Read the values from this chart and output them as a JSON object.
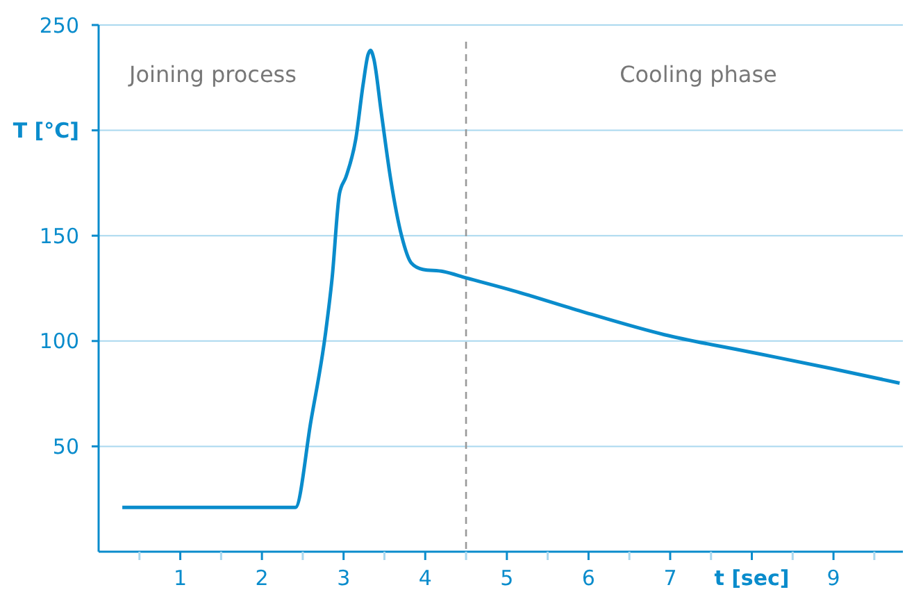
{
  "chart_data": {
    "type": "line",
    "xlabel": "t [sec]",
    "ylabel": "T [°C]",
    "annotations": [
      "Joining process",
      "Cooling phase"
    ],
    "x": [
      0.29,
      2.41,
      2.6,
      2.78,
      2.86,
      2.95,
      3.03,
      3.15,
      3.24,
      3.3,
      3.33,
      3.37,
      3.46,
      3.58,
      3.71,
      3.83,
      3.97,
      4.22,
      4.5,
      5.07,
      5.92,
      6.93,
      7.95,
      8.97,
      9.81
    ],
    "series": [
      {
        "color": "#0a8ccc",
        "values": [
          21,
          21,
          62,
          104,
          130,
          170,
          178,
          196,
          222,
          236,
          238,
          234,
          209,
          176,
          150,
          137,
          134,
          133,
          130,
          124,
          114,
          103,
          95,
          87,
          80
        ]
      }
    ],
    "xlim": [
      0,
      9.85
    ],
    "xticks": [
      {
        "value": 0.5,
        "label": null
      },
      1,
      {
        "value": 1.5,
        "label": null
      },
      2,
      {
        "value": 2.5,
        "label": null
      },
      3,
      {
        "value": 3.5,
        "label": null
      },
      4,
      {
        "value": 4.5,
        "label": null
      },
      5,
      {
        "value": 5.5,
        "label": null
      },
      6,
      {
        "value": 6.5,
        "label": null
      },
      7,
      {
        "value": 7.5,
        "label": null
      },
      {
        "value": 8,
        "label": null
      },
      {
        "value": 8.5,
        "label": null
      },
      9,
      {
        "value": 9.5,
        "label": null
      }
    ],
    "ylim": [
      0,
      250
    ],
    "yticks": [
      50,
      100,
      150,
      {
        "value": 200,
        "label": null
      },
      250
    ],
    "grid": "y",
    "marker": "none",
    "line_style": "solid",
    "ref_lines": [
      {
        "axis": "x",
        "value": 4.5,
        "color": "#999999",
        "line_style": "dashed"
      }
    ]
  }
}
